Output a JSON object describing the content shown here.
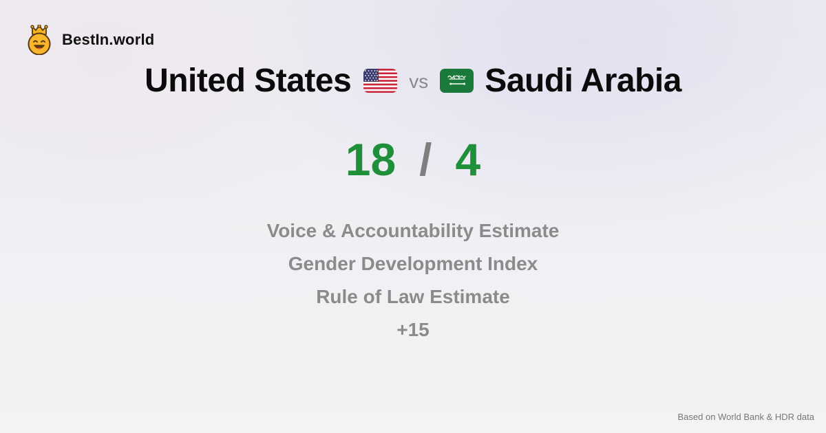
{
  "brand": {
    "logo_icon": "crowned-smiley-icon",
    "name": "BestIn.world"
  },
  "comparison": {
    "country_a": {
      "name": "United States",
      "flag_icon": "us-flag-icon"
    },
    "vs_label": "vs",
    "country_b": {
      "name": "Saudi Arabia",
      "flag_icon": "saudi-flag-icon"
    }
  },
  "score": {
    "a": "18",
    "separator": "/",
    "b": "4",
    "color": "#1f8f3a"
  },
  "metrics": [
    "Voice & Accountability Estimate",
    "Gender Development Index",
    "Rule of Law Estimate",
    "+15"
  ],
  "footer": {
    "source": "Based on World Bank & HDR data"
  }
}
